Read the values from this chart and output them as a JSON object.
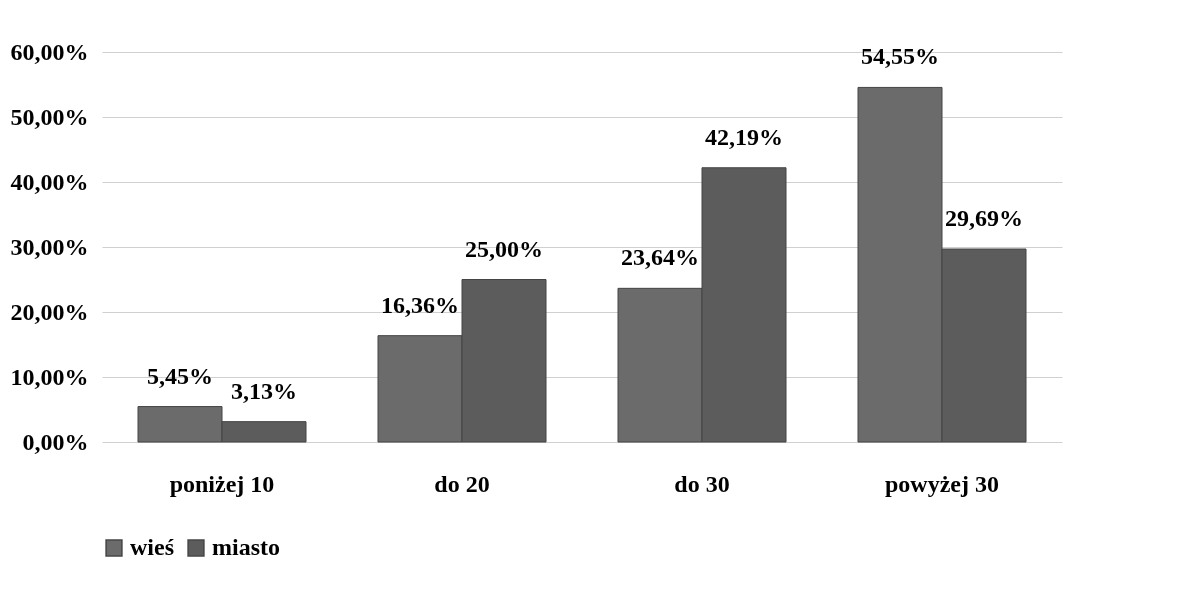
{
  "chart_data": {
    "type": "bar",
    "categories": [
      "poniżej 10",
      "do 20",
      "do 30",
      "powyżej 30"
    ],
    "series": [
      {
        "name": "wieś",
        "color": "#6b6b6b",
        "values": [
          5.45,
          16.36,
          23.64,
          54.55
        ],
        "value_labels": [
          "5,45%",
          "16,36%",
          "23,64%",
          "54,55%"
        ]
      },
      {
        "name": "miasto",
        "color": "#5c5c5c",
        "values": [
          3.13,
          25.0,
          42.19,
          29.69
        ],
        "value_labels": [
          "3,13%",
          "25,00%",
          "42,19%",
          "29,69%"
        ]
      }
    ],
    "ylim": [
      0,
      60
    ],
    "yticks": [
      {
        "value": 0,
        "label": "0,00%"
      },
      {
        "value": 10,
        "label": "10,00%"
      },
      {
        "value": 20,
        "label": "20,00%"
      },
      {
        "value": 30,
        "label": "30,00%"
      },
      {
        "value": 40,
        "label": "40,00%"
      },
      {
        "value": 50,
        "label": "50,00%"
      },
      {
        "value": 60,
        "label": "60,00%"
      }
    ],
    "grid": "y",
    "legend": "bottom"
  }
}
